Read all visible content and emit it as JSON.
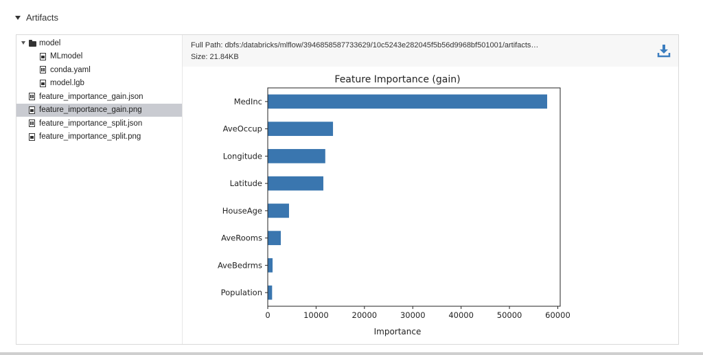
{
  "section": {
    "title": "Artifacts"
  },
  "tree": {
    "items": [
      {
        "label": "model",
        "type": "folder",
        "indent": 0
      },
      {
        "label": "MLmodel",
        "type": "file",
        "indent": 1
      },
      {
        "label": "conda.yaml",
        "type": "code-file",
        "indent": 1
      },
      {
        "label": "model.lgb",
        "type": "file",
        "indent": 1
      },
      {
        "label": "feature_importance_gain.json",
        "type": "code-file",
        "indent": 0
      },
      {
        "label": "feature_importance_gain.png",
        "type": "image-file",
        "indent": 0,
        "selected": true
      },
      {
        "label": "feature_importance_split.json",
        "type": "code-file",
        "indent": 0
      },
      {
        "label": "feature_importance_split.png",
        "type": "image-file",
        "indent": 0
      }
    ]
  },
  "detail": {
    "full_path_label": "Full Path:",
    "full_path_value": "dbfs:/databricks/mlflow/3946858587733629/10c5243e282045f5b56d9968bf501001/artifacts…",
    "size_label": "Size:",
    "size_value": "21.84KB",
    "download_icon": "download-icon",
    "accent_color": "#3b7dbf"
  },
  "chart_data": {
    "type": "bar",
    "orientation": "horizontal",
    "title": "Feature Importance (gain)",
    "xlabel": "Importance",
    "ylabel": "",
    "categories": [
      "MedInc",
      "AveOccup",
      "Longitude",
      "Latitude",
      "HouseAge",
      "AveRooms",
      "AveBedrms",
      "Population"
    ],
    "values": [
      57800,
      13500,
      11900,
      11500,
      4400,
      2700,
      1000,
      900
    ],
    "xlim": [
      0,
      60500
    ],
    "xticks": [
      0,
      10000,
      20000,
      30000,
      40000,
      50000,
      60000
    ],
    "bar_color": "#3a76af",
    "grid": false
  }
}
